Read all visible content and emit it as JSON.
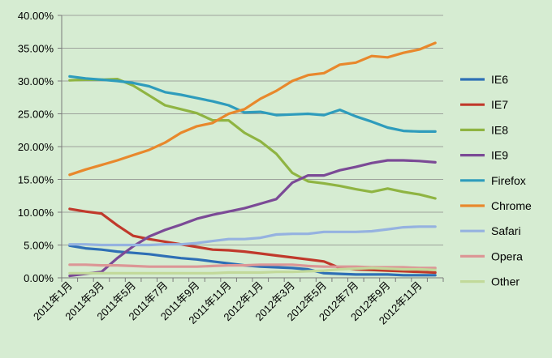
{
  "chart_data": {
    "type": "line",
    "title": "",
    "xlabel": "",
    "ylabel": "",
    "ylim": [
      0,
      40
    ],
    "y_ticks": [
      "0.00%",
      "5.00%",
      "10.00%",
      "15.00%",
      "20.00%",
      "25.00%",
      "30.00%",
      "35.00%",
      "40.00%"
    ],
    "y_tick_values": [
      0,
      5,
      10,
      15,
      20,
      25,
      30,
      35,
      40
    ],
    "grid": "horizontal",
    "legend_position": "right",
    "x": [
      "2011年1月",
      "2011年2月",
      "2011年3月",
      "2011年4月",
      "2011年5月",
      "2011年6月",
      "2011年7月",
      "2011年8月",
      "2011年9月",
      "2011年10月",
      "2011年11月",
      "2011年12月",
      "2012年1月",
      "2012年2月",
      "2012年3月",
      "2012年4月",
      "2012年5月",
      "2012年6月",
      "2012年7月",
      "2012年8月",
      "2012年9月",
      "2012年10月",
      "2012年11月",
      "2012年12月"
    ],
    "x_tick_labels": [
      "2011年1月",
      "2011年3月",
      "2011年5月",
      "2011年7月",
      "2011年9月",
      "2011年11月",
      "2012年1月",
      "2012年3月",
      "2012年5月",
      "2012年7月",
      "2012年9月",
      "2012年11月"
    ],
    "series": [
      {
        "name": "IE6",
        "color": "#2e6fb5",
        "values": [
          4.9,
          4.5,
          4.3,
          4.0,
          3.8,
          3.6,
          3.3,
          3.0,
          2.8,
          2.5,
          2.2,
          1.9,
          1.7,
          1.6,
          1.5,
          1.3,
          0.7,
          0.6,
          0.5,
          0.5,
          0.5,
          0.4,
          0.4,
          0.4
        ]
      },
      {
        "name": "IE7",
        "color": "#c0392b",
        "values": [
          10.5,
          10.1,
          9.8,
          8.0,
          6.4,
          5.9,
          5.5,
          5.1,
          4.7,
          4.3,
          4.2,
          4.0,
          3.7,
          3.4,
          3.1,
          2.8,
          2.5,
          1.5,
          1.3,
          1.2,
          1.1,
          1.0,
          0.9,
          0.8
        ]
      },
      {
        "name": "IE8",
        "color": "#8fb442",
        "values": [
          30.1,
          30.2,
          30.2,
          30.3,
          29.3,
          27.8,
          26.3,
          25.7,
          25.1,
          24.0,
          24.0,
          22.1,
          20.8,
          18.9,
          16.0,
          14.7,
          14.4,
          14.0,
          13.5,
          13.1,
          13.6,
          13.1,
          12.7,
          12.1
        ]
      },
      {
        "name": "IE9",
        "color": "#7b4a96",
        "values": [
          0.3,
          0.6,
          0.9,
          3.0,
          4.8,
          6.3,
          7.3,
          8.1,
          9.0,
          9.6,
          10.1,
          10.6,
          11.3,
          12.0,
          14.5,
          15.6,
          15.6,
          16.4,
          16.9,
          17.5,
          17.9,
          17.9,
          17.8,
          17.6
        ]
      },
      {
        "name": "Firefox",
        "color": "#2e9cbc",
        "values": [
          30.7,
          30.4,
          30.2,
          30.0,
          29.7,
          29.2,
          28.3,
          27.9,
          27.4,
          26.9,
          26.3,
          25.2,
          25.3,
          24.8,
          24.9,
          25.0,
          24.8,
          25.6,
          24.6,
          23.8,
          22.9,
          22.4,
          22.3,
          22.3
        ]
      },
      {
        "name": "Chrome",
        "color": "#e8882c",
        "values": [
          15.7,
          16.5,
          17.2,
          17.9,
          18.7,
          19.5,
          20.6,
          22.1,
          23.1,
          23.6,
          25.0,
          25.7,
          27.3,
          28.5,
          30.0,
          30.9,
          31.2,
          32.5,
          32.8,
          33.8,
          33.6,
          34.3,
          34.8,
          35.8
        ]
      },
      {
        "name": "Safari",
        "color": "#95b2e0",
        "values": [
          5.1,
          5.1,
          5.0,
          5.0,
          5.0,
          5.0,
          5.1,
          5.1,
          5.3,
          5.6,
          5.9,
          5.9,
          6.1,
          6.6,
          6.7,
          6.7,
          7.0,
          7.0,
          7.0,
          7.1,
          7.4,
          7.7,
          7.8,
          7.8
        ]
      },
      {
        "name": "Opera",
        "color": "#dc9696",
        "values": [
          2.0,
          2.0,
          1.9,
          1.9,
          1.8,
          1.7,
          1.7,
          1.7,
          1.7,
          1.8,
          1.9,
          1.9,
          2.0,
          2.0,
          2.0,
          1.8,
          1.7,
          1.7,
          1.7,
          1.6,
          1.6,
          1.6,
          1.5,
          1.5
        ]
      },
      {
        "name": "Other",
        "color": "#c2d99a",
        "values": [
          0.7,
          0.7,
          0.7,
          0.7,
          0.7,
          0.7,
          0.7,
          0.7,
          0.7,
          0.7,
          0.8,
          0.8,
          0.8,
          0.9,
          0.9,
          1.0,
          1.1,
          1.3,
          1.4,
          1.5,
          1.4,
          1.3,
          1.3,
          1.2
        ]
      }
    ]
  }
}
